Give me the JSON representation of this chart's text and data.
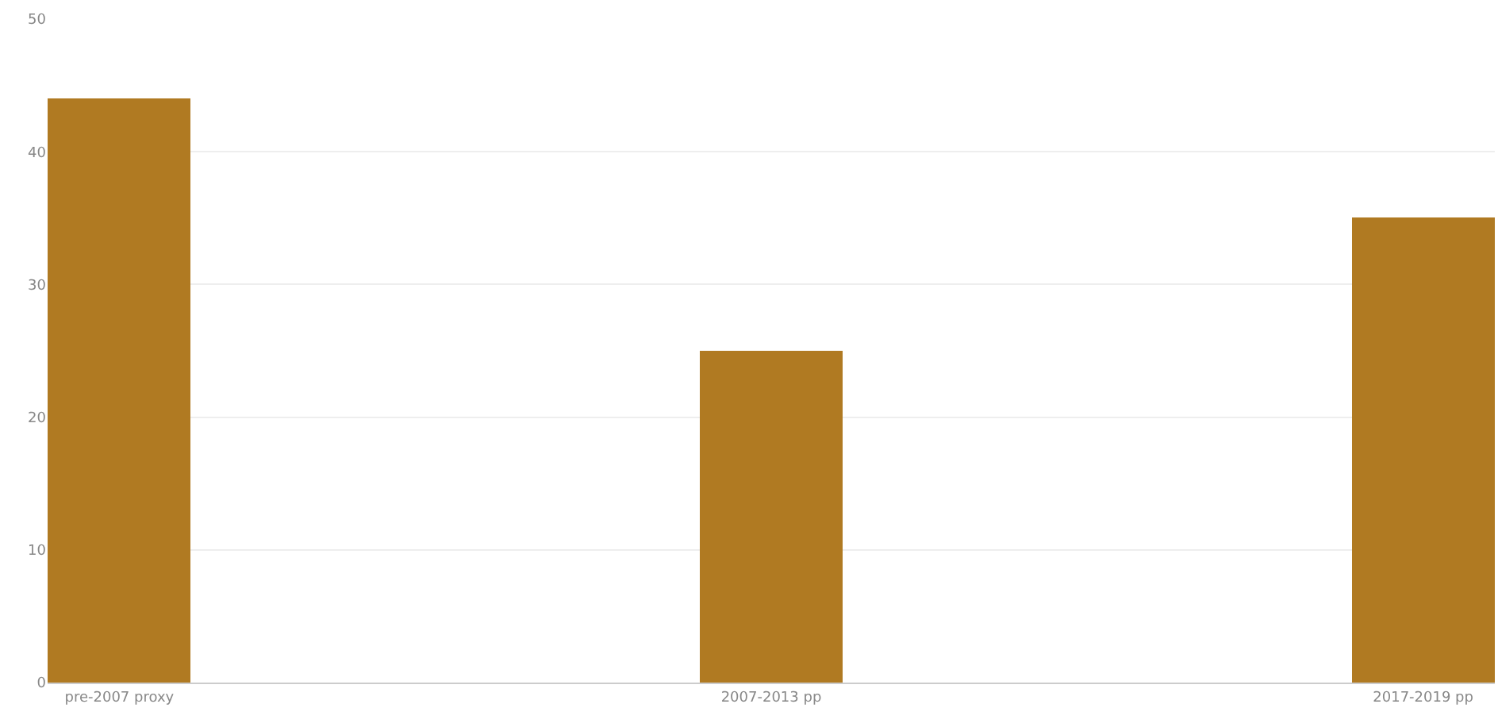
{
  "chart_data": {
    "type": "bar",
    "categories": [
      "pre-2007 proxy",
      "2007-2013 pp",
      "2017-2019 pp"
    ],
    "values": [
      44,
      25,
      35
    ],
    "color": "#b07a22",
    "ylim": [
      0,
      50
    ],
    "yticks": [
      0,
      10,
      20,
      30,
      40,
      50
    ],
    "grid": "y"
  }
}
